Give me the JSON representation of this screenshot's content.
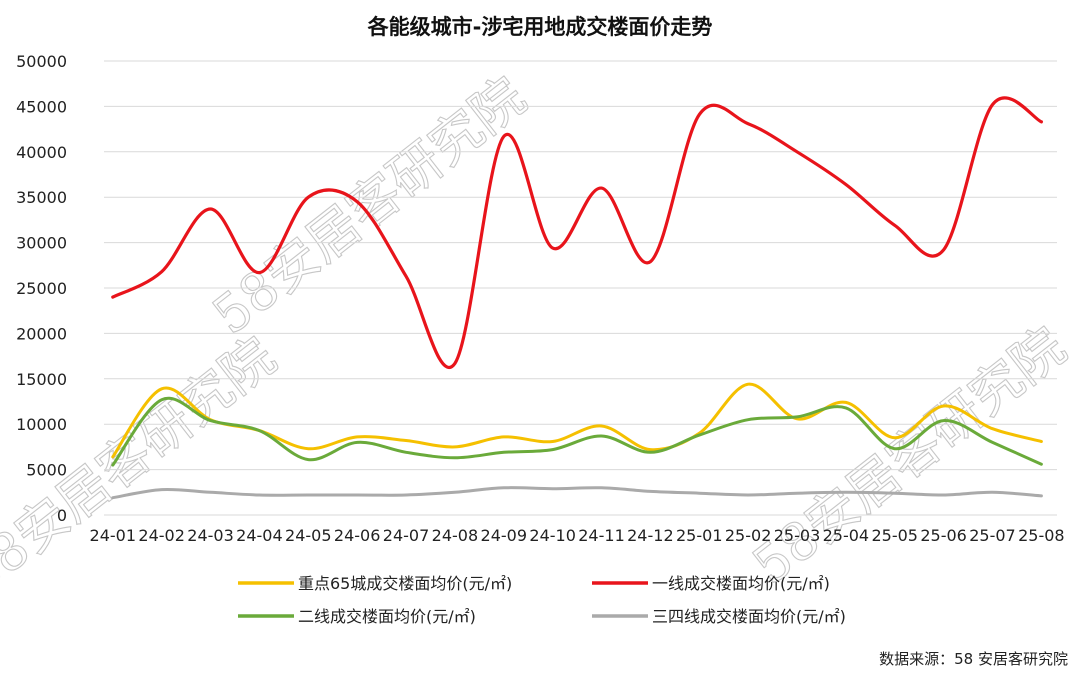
{
  "chart_data": {
    "type": "line",
    "title": "各能级城市-涉宅用地成交楼面价走势",
    "categories": [
      "24-01",
      "24-02",
      "24-03",
      "24-04",
      "24-05",
      "24-06",
      "24-07",
      "24-08",
      "24-09",
      "24-10",
      "24-11",
      "24-12",
      "25-01",
      "25-02",
      "25-03",
      "25-04",
      "25-05",
      "25-06",
      "25-07",
      "25-08"
    ],
    "ylim": [
      0,
      50000
    ],
    "yticks": [
      0,
      5000,
      10000,
      15000,
      20000,
      25000,
      30000,
      35000,
      40000,
      45000,
      50000
    ],
    "grid": true,
    "legend_position": "bottom",
    "series": [
      {
        "name": "重点65城成交楼面均价(元/㎡)",
        "color": "#f5c000",
        "values": [
          6400,
          13900,
          10500,
          9300,
          7300,
          8600,
          8200,
          7500,
          8600,
          8100,
          9800,
          7200,
          9000,
          14400,
          10600,
          12400,
          8500,
          12000,
          9500,
          8100
        ]
      },
      {
        "name": "一线成交楼面均价(元/㎡)",
        "color": "#e8141b",
        "values": [
          24000,
          26800,
          33700,
          26700,
          35000,
          34500,
          26300,
          16700,
          41700,
          29400,
          36000,
          27900,
          44100,
          43100,
          40000,
          36400,
          31900,
          29200,
          45200,
          43300
        ]
      },
      {
        "name": "二线成交楼面均价(元/㎡)",
        "color": "#6aaa3a",
        "values": [
          5500,
          12700,
          10400,
          9300,
          6100,
          8000,
          6900,
          6300,
          6900,
          7200,
          8700,
          6900,
          8800,
          10500,
          10800,
          11800,
          7300,
          10400,
          8000,
          5600
        ]
      },
      {
        "name": "三四线成交楼面均价(元/㎡)",
        "color": "#aaaaaa",
        "values": [
          1900,
          2800,
          2500,
          2200,
          2200,
          2200,
          2200,
          2500,
          3000,
          2900,
          3000,
          2600,
          2400,
          2200,
          2400,
          2500,
          2400,
          2200,
          2500,
          2100
        ]
      }
    ]
  },
  "source_note": "数据来源：58 安居客研究院",
  "watermark": "58安居客研究院"
}
